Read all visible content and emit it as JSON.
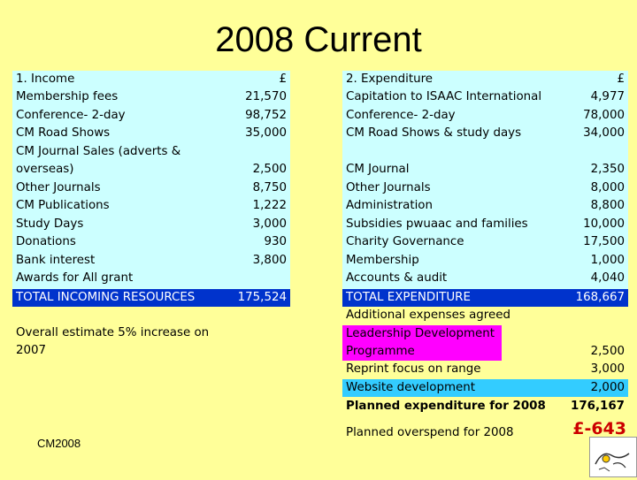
{
  "title": "2008 Current",
  "income": {
    "header": "1. Income",
    "currency": "£",
    "rows": [
      {
        "label": "Membership fees",
        "value": "21,570"
      },
      {
        "label": "Conference- 2-day",
        "value": "98,752"
      },
      {
        "label": "CM Road Shows",
        "value": "35,000"
      },
      {
        "label": "CM Journal Sales (adverts &",
        "value": ""
      },
      {
        "label": "overseas)",
        "value": "2,500"
      },
      {
        "label": "Other Journals",
        "value": "8,750"
      },
      {
        "label": "CM Publications",
        "value": "1,222"
      },
      {
        "label": "Study Days",
        "value": "3,000"
      },
      {
        "label": "Donations",
        "value": "930"
      },
      {
        "label": "Bank interest",
        "value": "3,800"
      },
      {
        "label": "Awards for All grant",
        "value": ""
      }
    ],
    "total_label": "TOTAL INCOMING RESOURCES",
    "total_value": "175,524",
    "note": "Overall estimate 5% increase on 2007"
  },
  "expenditure": {
    "header": "2. Expenditure",
    "currency": "£",
    "rows_a": [
      {
        "label": "Capitation to ISAAC International",
        "value": "4,977"
      },
      {
        "label": "Conference- 2-day",
        "value": "78,000"
      },
      {
        "label": "CM Road Shows & study days",
        "value": "34,000"
      }
    ],
    "rows_b": [
      {
        "label": "CM Journal",
        "value": "2,350"
      },
      {
        "label": "Other Journals",
        "value": "8,000"
      },
      {
        "label": "Administration",
        "value": "8,800"
      },
      {
        "label": "Subsidies pwuaac and families",
        "value": "10,000"
      },
      {
        "label": "Charity Governance",
        "value": "17,500"
      },
      {
        "label": "Membership",
        "value": "1,000"
      },
      {
        "label": "Accounts & audit",
        "value": "4,040"
      }
    ],
    "total_label": "TOTAL EXPENDITURE",
    "total_value": "168,667",
    "additional_label": "Additional expenses agreed",
    "leadership_label_1": "Leadership Development",
    "leadership_label_2": "Programme",
    "leadership_value": "2,500",
    "reprint_label": "Reprint focus on range",
    "reprint_value": "3,000",
    "website_label": "Website development",
    "website_value": "2,000",
    "planned_label": "Planned expenditure for 2008",
    "planned_value": "176,167",
    "overspend_label": "Planned overspend for 2008",
    "overspend_value": "£-643"
  },
  "footer": "CM2008"
}
